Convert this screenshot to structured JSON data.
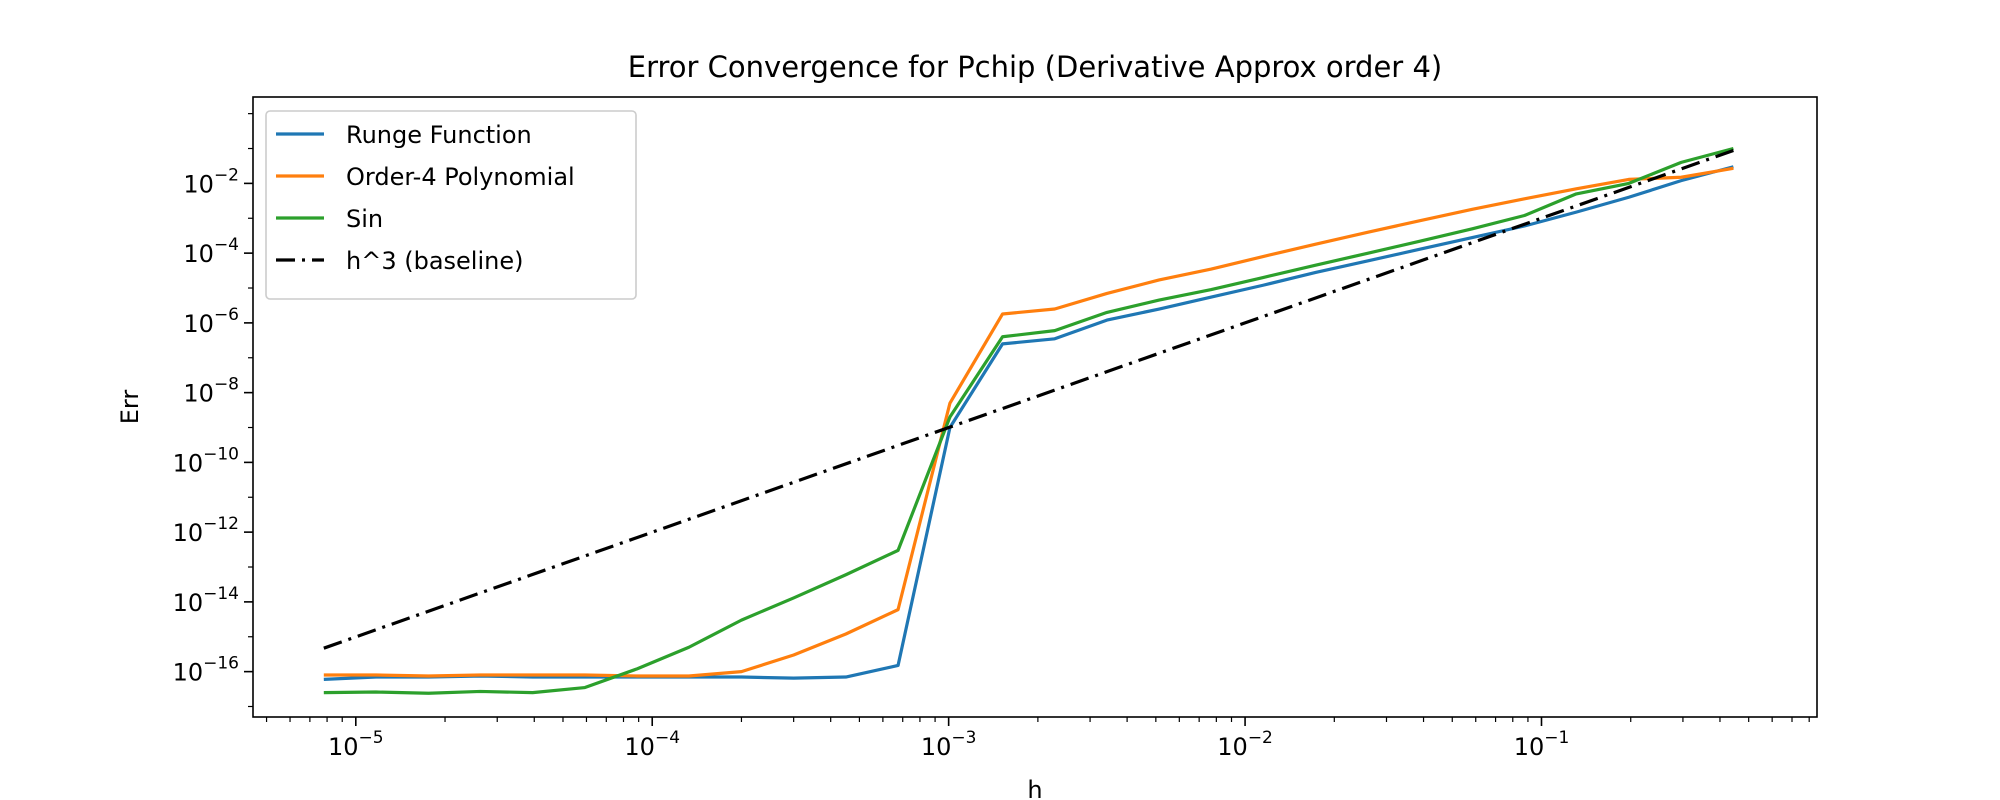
{
  "chart_data": {
    "type": "line",
    "title": "Error Convergence for Pchip (Derivative Approx order 4)",
    "xlabel": "h",
    "ylabel": "Err",
    "xscale": "log",
    "yscale": "log",
    "xlim": [
      4.5e-06,
      0.85
    ],
    "ylim": [
      5e-18,
      3.0
    ],
    "x_ticks": [
      {
        "value": 1e-05,
        "base": "10",
        "exp": "−5"
      },
      {
        "value": 0.0001,
        "base": "10",
        "exp": "−4"
      },
      {
        "value": 0.001,
        "base": "10",
        "exp": "−3"
      },
      {
        "value": 0.01,
        "base": "10",
        "exp": "−2"
      },
      {
        "value": 0.1,
        "base": "10",
        "exp": "−1"
      }
    ],
    "y_ticks": [
      {
        "value": 0.01,
        "base": "10",
        "exp": "−2"
      },
      {
        "value": 0.0001,
        "base": "10",
        "exp": "−4"
      },
      {
        "value": 1e-06,
        "base": "10",
        "exp": "−6"
      },
      {
        "value": 1e-08,
        "base": "10",
        "exp": "−8"
      },
      {
        "value": 1e-10,
        "base": "10",
        "exp": "−10"
      },
      {
        "value": 1e-12,
        "base": "10",
        "exp": "−12"
      },
      {
        "value": 1e-14,
        "base": "10",
        "exp": "−14"
      },
      {
        "value": 1e-16,
        "base": "10",
        "exp": "−16"
      }
    ],
    "grid": false,
    "legend_position": "top-left",
    "series": [
      {
        "name": "Runge Function",
        "color": "#1f77b4",
        "dash": "solid",
        "x": [
          7.8e-06,
          1.17e-05,
          1.76e-05,
          2.63e-05,
          3.95e-05,
          5.93e-05,
          8.89e-05,
          0.000133,
          0.0002,
          0.0003,
          0.00045,
          0.000675,
          0.00101,
          0.00152,
          0.00228,
          0.00342,
          0.00513,
          0.00769,
          0.0115,
          0.0173,
          0.026,
          0.0389,
          0.0584,
          0.0876,
          0.131,
          0.197,
          0.296,
          0.444
        ],
        "y": [
          6e-17,
          7e-17,
          7e-17,
          7.5e-17,
          7e-17,
          7e-17,
          7e-17,
          7e-17,
          7e-17,
          6.5e-17,
          7e-17,
          1.5e-16,
          1e-09,
          2.5e-07,
          3.5e-07,
          1.2e-06,
          2.5e-06,
          5.5e-06,
          1.2e-05,
          2.8e-05,
          6e-05,
          0.00013,
          0.00028,
          0.0006,
          0.0015,
          0.004,
          0.012,
          0.03
        ]
      },
      {
        "name": "Order-4 Polynomial",
        "color": "#ff7f0e",
        "dash": "solid",
        "x": [
          7.8e-06,
          1.17e-05,
          1.76e-05,
          2.63e-05,
          3.95e-05,
          5.93e-05,
          8.89e-05,
          0.000133,
          0.0002,
          0.0003,
          0.00045,
          0.000675,
          0.00101,
          0.00152,
          0.00228,
          0.00342,
          0.00513,
          0.00769,
          0.0115,
          0.0173,
          0.026,
          0.0389,
          0.0584,
          0.0876,
          0.131,
          0.197,
          0.296,
          0.444
        ],
        "y": [
          8e-17,
          8e-17,
          7.5e-17,
          8e-17,
          8e-17,
          8e-17,
          7.5e-17,
          7.5e-17,
          1e-16,
          3e-16,
          1.2e-15,
          6e-15,
          5e-09,
          1.8e-06,
          2.5e-06,
          7e-06,
          1.7e-05,
          3.5e-05,
          8e-05,
          0.00018,
          0.0004,
          0.00085,
          0.0018,
          0.0036,
          0.007,
          0.013,
          0.015,
          0.027
        ]
      },
      {
        "name": "Sin",
        "color": "#2ca02c",
        "dash": "solid",
        "x": [
          7.8e-06,
          1.17e-05,
          1.76e-05,
          2.63e-05,
          3.95e-05,
          5.93e-05,
          8.89e-05,
          0.000133,
          0.0002,
          0.0003,
          0.00045,
          0.000675,
          0.00101,
          0.00152,
          0.00228,
          0.00342,
          0.00513,
          0.00769,
          0.0115,
          0.0173,
          0.026,
          0.0389,
          0.0584,
          0.0876,
          0.131,
          0.197,
          0.296,
          0.444
        ],
        "y": [
          2.5e-17,
          2.6e-17,
          2.4e-17,
          2.7e-17,
          2.5e-17,
          3.5e-17,
          1.2e-16,
          5e-16,
          3e-15,
          1.3e-14,
          6e-14,
          3e-13,
          2e-09,
          4e-07,
          6e-07,
          2e-06,
          4.5e-06,
          9e-06,
          2e-05,
          4.5e-05,
          0.0001,
          0.00022,
          0.0005,
          0.0012,
          0.005,
          0.01,
          0.04,
          0.1
        ]
      },
      {
        "name": "h^3 (baseline)",
        "color": "#000000",
        "dash": "dashdot",
        "x": [
          7.8e-06,
          0.444
        ],
        "y": [
          4.7e-16,
          0.088
        ]
      }
    ]
  }
}
